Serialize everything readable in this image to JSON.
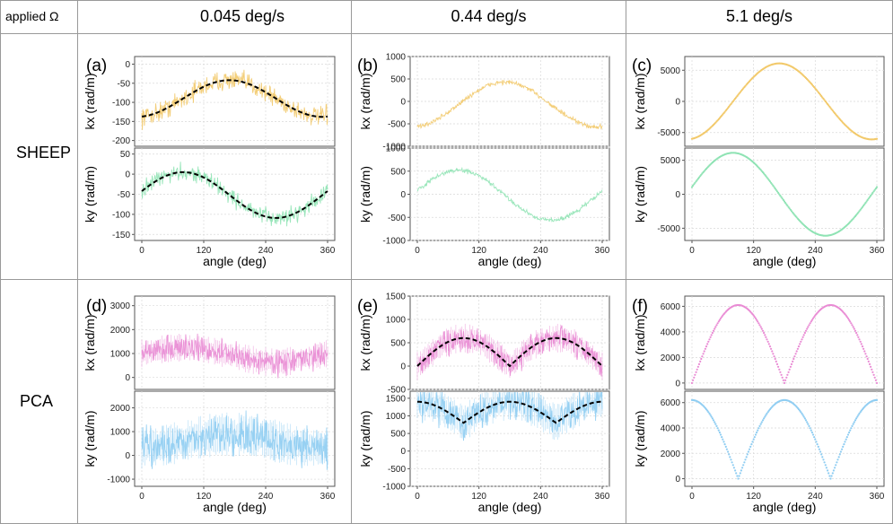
{
  "header": {
    "corner": "applied Ω",
    "columns": [
      "0.045 deg/s",
      "0.44 deg/s",
      "5.1 deg/s"
    ],
    "rows": [
      "SHEEP",
      "PCA"
    ]
  },
  "axis": {
    "x_label": "angle (deg)",
    "kx_label": "kx (rad/m)",
    "ky_label": "ky (rad/m)",
    "x_ticks": [
      0,
      120,
      240,
      360
    ]
  },
  "colors": {
    "kx_sheep": "#f2c96a",
    "ky_sheep": "#8fe3b4",
    "kx_pca": "#e98bd4",
    "ky_pca": "#8fcdf2",
    "fit": "#000000",
    "grid": "#d9d9d9"
  },
  "chart_data": [
    {
      "panel": "a",
      "row": "SHEEP",
      "column": "0.045 deg/s",
      "type": "line",
      "ylabel": "kx (rad/m)",
      "yticks": [
        0,
        -50,
        -100,
        -150,
        -200
      ],
      "ylim": [
        -215,
        20
      ],
      "series": {
        "shape": "sine",
        "mean": -90,
        "amp": 48,
        "phase_deg": 80,
        "periods": 1,
        "noise": 22
      },
      "fit": true
    },
    {
      "panel": "a",
      "row": "SHEEP",
      "column": "0.045 deg/s",
      "type": "line",
      "ylabel": "ky (rad/m)",
      "yticks": [
        50,
        0,
        -50,
        -100,
        -150
      ],
      "ylim": [
        -165,
        65
      ],
      "series": {
        "shape": "sine",
        "mean": -52,
        "amp": 57,
        "phase_deg": -10,
        "periods": 1,
        "noise": 18
      },
      "fit": true
    },
    {
      "panel": "b",
      "row": "SHEEP",
      "column": "0.44 deg/s",
      "type": "line",
      "ylabel": "kx (rad/m)",
      "yticks": [
        1000,
        500,
        0,
        -500,
        -1000
      ],
      "ylim": [
        -1000,
        1000
      ],
      "series": {
        "shape": "sine",
        "mean": -70,
        "amp": 500,
        "phase_deg": 80,
        "periods": 1,
        "noise": 45
      },
      "fit": false
    },
    {
      "panel": "b",
      "row": "SHEEP",
      "column": "0.44 deg/s",
      "type": "line",
      "ylabel": "ky (rad/m)",
      "yticks": [
        1000,
        500,
        0,
        -500,
        -1000
      ],
      "ylim": [
        -1000,
        1000
      ],
      "series": {
        "shape": "sine",
        "mean": -20,
        "amp": 540,
        "phase_deg": -10,
        "periods": 1,
        "noise": 40
      },
      "fit": false
    },
    {
      "panel": "c",
      "row": "SHEEP",
      "column": "5.1 deg/s",
      "type": "line",
      "ylabel": "kx (rad/m)",
      "yticks": [
        5000,
        0,
        -5000
      ],
      "ylim": [
        -7200,
        7200
      ],
      "series": {
        "shape": "sine",
        "mean": 0,
        "amp": 6100,
        "phase_deg": 80,
        "periods": 1,
        "noise": 0
      },
      "fit": false
    },
    {
      "panel": "c",
      "row": "SHEEP",
      "column": "5.1 deg/s",
      "type": "line",
      "ylabel": "ky (rad/m)",
      "yticks": [
        5000,
        0,
        -5000
      ],
      "ylim": [
        -6800,
        6800
      ],
      "series": {
        "shape": "sine",
        "mean": 0,
        "amp": 6100,
        "phase_deg": -10,
        "periods": 1,
        "noise": 0
      },
      "fit": false
    },
    {
      "panel": "d",
      "row": "PCA",
      "column": "0.045 deg/s",
      "type": "line",
      "ylabel": "kx (rad/m)",
      "yticks": [
        3000,
        2000,
        1000,
        0
      ],
      "ylim": [
        -500,
        3400
      ],
      "series": {
        "shape": "sine",
        "mean": 950,
        "amp": 300,
        "phase_deg": -10,
        "periods": 1,
        "noise": 420
      },
      "fit": false
    },
    {
      "panel": "d",
      "row": "PCA",
      "column": "0.045 deg/s",
      "type": "line",
      "ylabel": "ky (rad/m)",
      "yticks": [
        2000,
        1000,
        0,
        -1000
      ],
      "ylim": [
        -1300,
        2700
      ],
      "series": {
        "shape": "sine",
        "mean": 600,
        "amp": 300,
        "phase_deg": 80,
        "periods": 1,
        "noise": 650
      },
      "fit": false
    },
    {
      "panel": "e",
      "row": "PCA",
      "column": "0.44 deg/s",
      "type": "line",
      "ylabel": "kx (rad/m)",
      "yticks": [
        1500,
        1000,
        500,
        0,
        -500
      ],
      "ylim": [
        -500,
        1500
      ],
      "series": {
        "shape": "absine",
        "amp": 600,
        "offset": 0,
        "phase_deg": 0,
        "noise": 220
      },
      "fit": true
    },
    {
      "panel": "e",
      "row": "PCA",
      "column": "0.44 deg/s",
      "type": "line",
      "ylabel": "ky (rad/m)",
      "yticks": [
        1500,
        1000,
        500,
        0,
        -500,
        -1000
      ],
      "ylim": [
        -1000,
        1700
      ],
      "series": {
        "shape": "abscos",
        "amp": 600,
        "offset": 800,
        "phase_deg": 0,
        "noise": 380
      },
      "fit": true
    },
    {
      "panel": "f",
      "row": "PCA",
      "column": "5.1 deg/s",
      "type": "line",
      "ylabel": "kx (rad/m)",
      "yticks": [
        6000,
        4000,
        2000,
        0
      ],
      "ylim": [
        -500,
        6800
      ],
      "series": {
        "shape": "absine",
        "amp": 6100,
        "offset": 0,
        "phase_deg": 0,
        "noise": 0
      },
      "fit": false
    },
    {
      "panel": "f",
      "row": "PCA",
      "column": "5.1 deg/s",
      "type": "line",
      "ylabel": "ky (rad/m)",
      "yticks": [
        6000,
        4000,
        2000,
        0
      ],
      "ylim": [
        -600,
        6900
      ],
      "series": {
        "shape": "abscos",
        "amp": 6200,
        "offset": 0,
        "phase_deg": 0,
        "noise": 0
      },
      "fit": false
    }
  ]
}
